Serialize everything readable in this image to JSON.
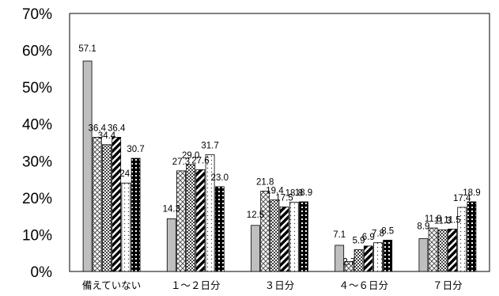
{
  "chart_data": {
    "type": "bar",
    "title": "",
    "xlabel": "",
    "ylabel": "",
    "ylim": [
      0,
      70
    ],
    "yticks": [
      "0%",
      "10%",
      "20%",
      "30%",
      "40%",
      "50%",
      "60%",
      "70%"
    ],
    "grid": false,
    "legend": "none",
    "categories": [
      "備えていない",
      "１～２日分",
      "３日分",
      "４～６日分",
      "７日分"
    ],
    "series": [
      {
        "values": [
          57.1,
          14.3,
          12.5,
          7.1,
          8.9
        ],
        "labels": [
          "57.1",
          "14.3",
          "12.5",
          "7.1",
          "8.9"
        ],
        "fill": "solid-gray",
        "color": "#bfbfbf"
      },
      {
        "values": [
          36.4,
          27.3,
          21.8,
          2.7,
          11.8
        ],
        "labels": [
          "36.4",
          "27.3",
          "21.8",
          "2.7",
          "11.8"
        ],
        "fill": "crosshatch",
        "color": "#000000"
      },
      {
        "values": [
          34.4,
          29.0,
          19.4,
          5.9,
          11.3
        ],
        "labels": [
          "34.4",
          "29.0",
          "19.4",
          "5.9",
          "11.3"
        ],
        "fill": "checker",
        "color": "#000000"
      },
      {
        "values": [
          36.4,
          27.6,
          17.5,
          6.9,
          11.5
        ],
        "labels": [
          "36.4",
          "27.6",
          "17.5",
          "6.9",
          "11.5"
        ],
        "fill": "diagonal",
        "color": "#000000"
      },
      {
        "values": [
          24.0,
          31.7,
          18.8,
          7.8,
          17.4
        ],
        "labels": [
          "24.",
          "31.7",
          "18.8",
          "7.8",
          "17.4"
        ],
        "fill": "dotted",
        "color": "#000000"
      },
      {
        "values": [
          30.7,
          23.0,
          18.9,
          8.5,
          18.9
        ],
        "labels": [
          "30.7",
          "23.0",
          "18.9",
          "8.5",
          "18.9"
        ],
        "fill": "dark-check",
        "color": "#000000"
      }
    ]
  }
}
